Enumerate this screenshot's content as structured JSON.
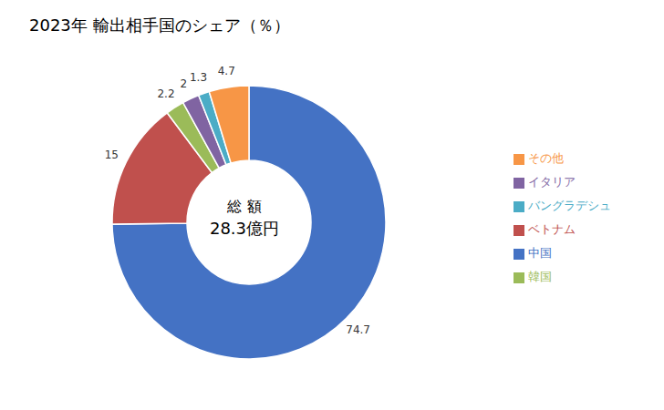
{
  "chart_data": {
    "type": "pie",
    "title": "2023年 輸出相手国のシェア（％）",
    "annotations": [
      "総 額",
      "28.3億円"
    ],
    "categories": [
      "中国",
      "ベトナム",
      "韓国",
      "イタリア",
      "バングラデシュ",
      "その他"
    ],
    "values": [
      74.7,
      15,
      2.2,
      2,
      1.3,
      4.7
    ],
    "colors": [
      "#4472C4",
      "#C0504D",
      "#9BBB59",
      "#8064A2",
      "#4BACC6",
      "#F79646"
    ],
    "data_labels": true,
    "legend": "right"
  }
}
